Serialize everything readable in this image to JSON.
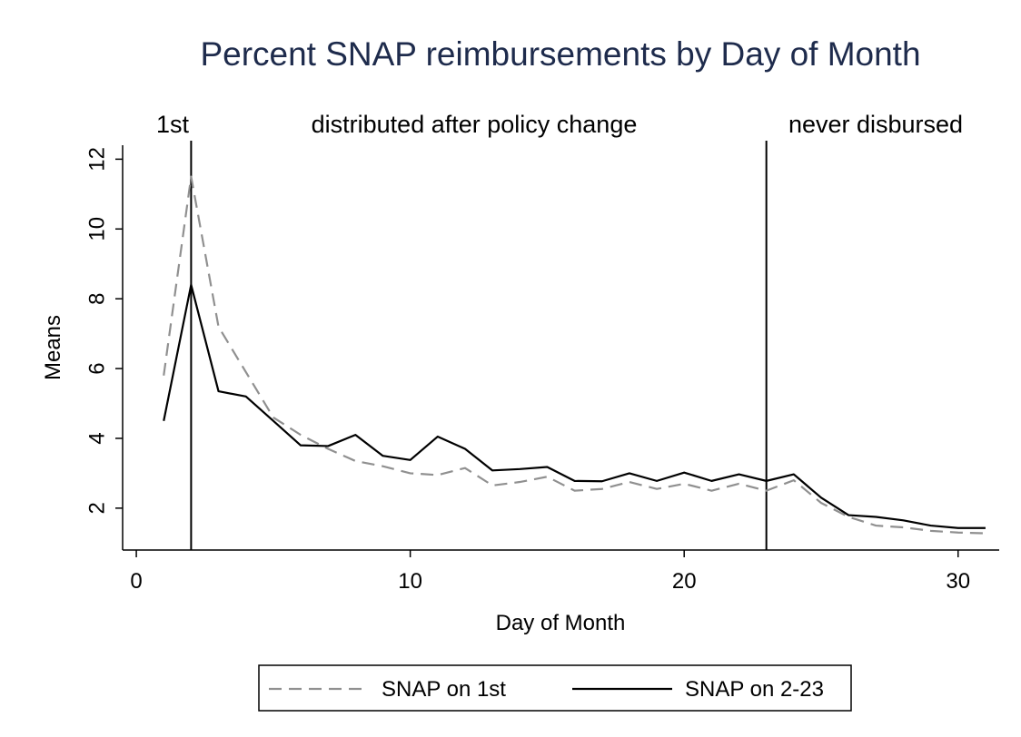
{
  "chart_data": {
    "type": "line",
    "title": "Percent SNAP reimbursements by Day of Month",
    "x_label": "Day of Month",
    "y_label": "Means",
    "annotations": [
      "1st",
      "distributed after policy change",
      "never disbursed"
    ],
    "vlines": [
      2,
      23
    ],
    "x": [
      1,
      2,
      3,
      4,
      5,
      6,
      7,
      8,
      9,
      10,
      11,
      12,
      13,
      14,
      15,
      16,
      17,
      18,
      19,
      20,
      21,
      22,
      23,
      24,
      25,
      26,
      27,
      28,
      29,
      30,
      31
    ],
    "series": [
      {
        "name": "SNAP on 1st",
        "color": "#909090",
        "dash": true,
        "values": [
          5.8,
          11.5,
          7.2,
          5.9,
          4.6,
          4.1,
          3.7,
          3.35,
          3.2,
          3.0,
          2.95,
          3.15,
          2.65,
          2.75,
          2.9,
          2.5,
          2.55,
          2.75,
          2.55,
          2.7,
          2.5,
          2.7,
          2.5,
          2.8,
          2.15,
          1.75,
          1.5,
          1.45,
          1.35,
          1.3,
          1.28
        ]
      },
      {
        "name": "SNAP on 2-23",
        "color": "#000000",
        "dash": false,
        "values": [
          4.5,
          8.4,
          5.35,
          5.2,
          4.5,
          3.8,
          3.78,
          4.1,
          3.5,
          3.38,
          4.05,
          3.7,
          3.08,
          3.12,
          3.18,
          2.78,
          2.77,
          3.0,
          2.78,
          3.02,
          2.78,
          2.97,
          2.78,
          2.97,
          2.3,
          1.8,
          1.75,
          1.65,
          1.5,
          1.43,
          1.43
        ]
      }
    ],
    "xlim": [
      -0.5,
      31.5
    ],
    "xticks": [
      0,
      10,
      20,
      30
    ],
    "ylim": [
      0.8,
      12.4
    ],
    "yticks": [
      2,
      4,
      6,
      8,
      10,
      12
    ],
    "legend": "bottom"
  }
}
